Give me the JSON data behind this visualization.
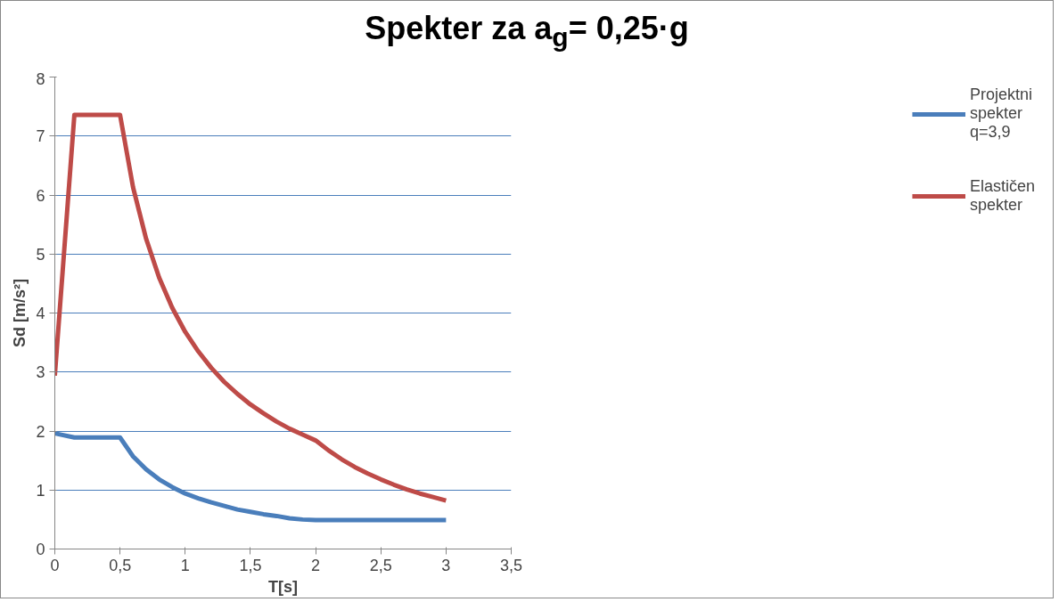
{
  "chart_data": {
    "type": "line",
    "title": "Spekter za a$_{g}$= 0,25·g",
    "xlabel": "T[s]",
    "ylabel": "Sd [m/s²]",
    "xlim": [
      0,
      3.5
    ],
    "xticks": [
      0,
      {
        "value": 0.5,
        "label": "0,5"
      },
      1,
      {
        "value": 1.5,
        "label": "1,5"
      },
      2,
      {
        "value": 2.5,
        "label": "2,5"
      },
      3,
      {
        "value": 3.5,
        "label": "3,5"
      }
    ],
    "ylim": [
      0,
      8
    ],
    "yticks": [
      0,
      1,
      2,
      3,
      4,
      5,
      6,
      7,
      8
    ],
    "grid": "y",
    "legend": "right",
    "line_style": "solid",
    "marker": "none",
    "x": [
      0,
      0.15,
      0.5,
      0.6,
      0.7,
      0.8,
      0.9,
      1.0,
      1.1,
      1.2,
      1.3,
      1.4,
      1.5,
      1.6,
      1.7,
      1.8,
      1.9,
      2.0,
      2.1,
      2.2,
      2.3,
      2.4,
      2.5,
      2.6,
      2.7,
      2.8,
      2.9,
      3.0
    ],
    "series": [
      {
        "name": "Projektni spekter q=3,9",
        "color": "#4a7ebb",
        "values": [
          1.96,
          1.89,
          1.89,
          1.57,
          1.35,
          1.18,
          1.05,
          0.94,
          0.86,
          0.79,
          0.73,
          0.67,
          0.63,
          0.59,
          0.56,
          0.52,
          0.5,
          0.49,
          0.49,
          0.49,
          0.49,
          0.49,
          0.49,
          0.49,
          0.49,
          0.49,
          0.49,
          0.49
        ]
      },
      {
        "name": "Elastičen spekter",
        "color": "#be4b48",
        "values": [
          2.94,
          7.36,
          7.36,
          6.13,
          5.26,
          4.6,
          4.09,
          3.68,
          3.35,
          3.07,
          2.83,
          2.63,
          2.45,
          2.3,
          2.16,
          2.04,
          1.94,
          1.84,
          1.67,
          1.52,
          1.39,
          1.28,
          1.18,
          1.09,
          1.01,
          0.94,
          0.88,
          0.82
        ]
      }
    ]
  }
}
